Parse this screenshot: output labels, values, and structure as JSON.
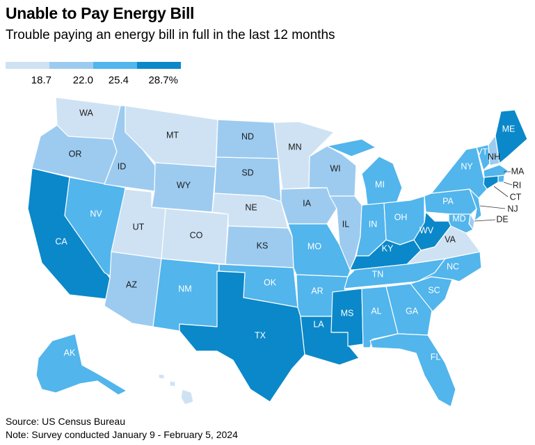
{
  "title": "Unable to Pay Energy Bill",
  "subtitle": "Trouble paying an energy bill in full in the last 12 months",
  "legend": {
    "bins": [
      {
        "color": "#cfe2f3",
        "label": "18.7"
      },
      {
        "color": "#9dcbf0",
        "label": "22.0"
      },
      {
        "color": "#52b5ec",
        "label": "25.4"
      },
      {
        "color": "#0b88c9",
        "label": "28.7%"
      }
    ]
  },
  "states": {
    "WA": {
      "label": "WA",
      "bin": 0
    },
    "OR": {
      "label": "OR",
      "bin": 1
    },
    "CA": {
      "label": "CA",
      "bin": 3
    },
    "NV": {
      "label": "NV",
      "bin": 2
    },
    "ID": {
      "label": "ID",
      "bin": 1
    },
    "MT": {
      "label": "MT",
      "bin": 0
    },
    "WY": {
      "label": "WY",
      "bin": 1
    },
    "UT": {
      "label": "UT",
      "bin": 0
    },
    "CO": {
      "label": "CO",
      "bin": 0
    },
    "AZ": {
      "label": "AZ",
      "bin": 1
    },
    "NM": {
      "label": "NM",
      "bin": 2
    },
    "ND": {
      "label": "ND",
      "bin": 1
    },
    "SD": {
      "label": "SD",
      "bin": 1
    },
    "NE": {
      "label": "NE",
      "bin": 0
    },
    "KS": {
      "label": "KS",
      "bin": 1
    },
    "OK": {
      "label": "OK",
      "bin": 2
    },
    "TX": {
      "label": "TX",
      "bin": 3
    },
    "MN": {
      "label": "MN",
      "bin": 0
    },
    "IA": {
      "label": "IA",
      "bin": 1
    },
    "MO": {
      "label": "MO",
      "bin": 2
    },
    "AR": {
      "label": "AR",
      "bin": 2
    },
    "LA": {
      "label": "LA",
      "bin": 3
    },
    "WI": {
      "label": "WI",
      "bin": 1
    },
    "IL": {
      "label": "IL",
      "bin": 1
    },
    "MI": {
      "label": "MI",
      "bin": 2
    },
    "IN": {
      "label": "IN",
      "bin": 2
    },
    "OH": {
      "label": "OH",
      "bin": 2
    },
    "KY": {
      "label": "KY",
      "bin": 3
    },
    "TN": {
      "label": "TN",
      "bin": 2
    },
    "MS": {
      "label": "MS",
      "bin": 3
    },
    "AL": {
      "label": "AL",
      "bin": 2
    },
    "GA": {
      "label": "GA",
      "bin": 2
    },
    "FL": {
      "label": "FL",
      "bin": 2
    },
    "SC": {
      "label": "SC",
      "bin": 2
    },
    "NC": {
      "label": "NC",
      "bin": 2
    },
    "VA": {
      "label": "VA",
      "bin": 0
    },
    "WV": {
      "label": "WV",
      "bin": 3
    },
    "PA": {
      "label": "PA",
      "bin": 2
    },
    "NY": {
      "label": "NY",
      "bin": 2
    },
    "VT": {
      "label": "VT",
      "bin": 2
    },
    "NH": {
      "label": "NH",
      "bin": 1
    },
    "ME": {
      "label": "ME",
      "bin": 3
    },
    "MA": {
      "label": "MA",
      "bin": 2
    },
    "RI": {
      "label": "RI",
      "bin": 2
    },
    "CT": {
      "label": "CT",
      "bin": 3
    },
    "NJ": {
      "label": "NJ",
      "bin": 2
    },
    "DE": {
      "label": "DE",
      "bin": 1
    },
    "MD": {
      "label": "MD",
      "bin": 2
    },
    "AK": {
      "label": "AK",
      "bin": 2
    },
    "HI": {
      "label": "",
      "bin": 0
    }
  },
  "footer": {
    "source": "Source: US Census Bureau",
    "note": "Note: Survey conducted January 9 - February 5, 2024"
  }
}
